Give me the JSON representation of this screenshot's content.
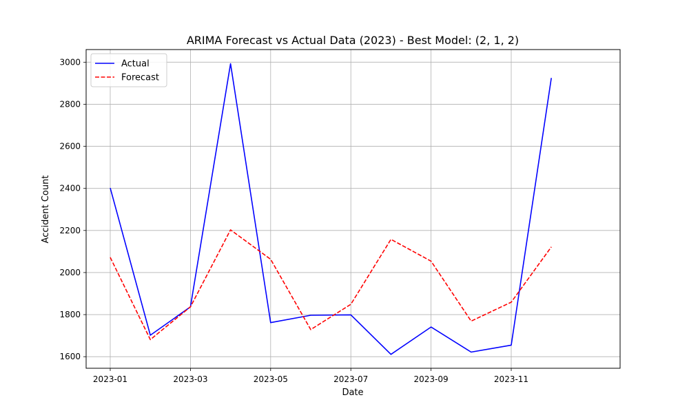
{
  "chart_data": {
    "type": "line",
    "title": "ARIMA Forecast vs Actual Data (2023) - Best Model: (2, 1, 2)",
    "xlabel": "Date",
    "ylabel": "Accident Count",
    "x": [
      "2023-01",
      "2023-02",
      "2023-03",
      "2023-04",
      "2023-05",
      "2023-06",
      "2023-07",
      "2023-08",
      "2023-09",
      "2023-10",
      "2023-11",
      "2023-12"
    ],
    "x_ticks": [
      "2023-01",
      "2023-03",
      "2023-05",
      "2023-07",
      "2023-09",
      "2023-11"
    ],
    "ylim": [
      1545,
      3060
    ],
    "y_ticks": [
      1600,
      1800,
      2000,
      2200,
      2400,
      2600,
      2800,
      3000
    ],
    "grid": true,
    "legend_position": "upper-left",
    "series": [
      {
        "name": "Actual",
        "color": "#0000ff",
        "style": "solid",
        "values": [
          2402,
          1702,
          1837,
          2993,
          1762,
          1797,
          1799,
          1611,
          1741,
          1622,
          1655,
          2925
        ]
      },
      {
        "name": "Forecast",
        "color": "#ff0000",
        "style": "dashed",
        "values": [
          2072,
          1681,
          1837,
          2203,
          2063,
          1729,
          1849,
          2158,
          2054,
          1769,
          1859,
          2122
        ]
      }
    ]
  }
}
